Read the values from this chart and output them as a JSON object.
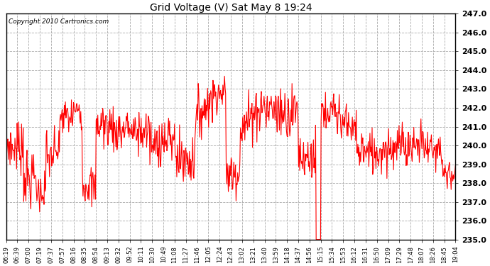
{
  "title": "Grid Voltage (V) Sat May 8 19:24",
  "copyright": "Copyright 2010 Cartronics.com",
  "line_color": "#ff0000",
  "bg_color": "#ffffff",
  "grid_color": "#aaaaaa",
  "ylim": [
    235.0,
    247.0
  ],
  "yticks": [
    235.0,
    236.0,
    237.0,
    238.0,
    239.0,
    240.0,
    241.0,
    242.0,
    243.0,
    244.0,
    245.0,
    246.0,
    247.0
  ],
  "xtick_labels": [
    "06:19",
    "06:39",
    "07:00",
    "07:19",
    "07:37",
    "07:57",
    "08:16",
    "08:35",
    "08:54",
    "09:13",
    "09:32",
    "09:52",
    "10:11",
    "10:30",
    "10:49",
    "11:08",
    "11:27",
    "11:46",
    "12:05",
    "12:24",
    "12:43",
    "13:02",
    "13:21",
    "13:40",
    "13:59",
    "14:18",
    "14:37",
    "14:56",
    "15:15",
    "15:34",
    "15:53",
    "16:12",
    "16:31",
    "16:50",
    "17:09",
    "17:29",
    "17:48",
    "18:07",
    "18:26",
    "18:45",
    "19:04"
  ],
  "n_points": 820,
  "figwidth": 6.9,
  "figheight": 3.75,
  "dpi": 100
}
